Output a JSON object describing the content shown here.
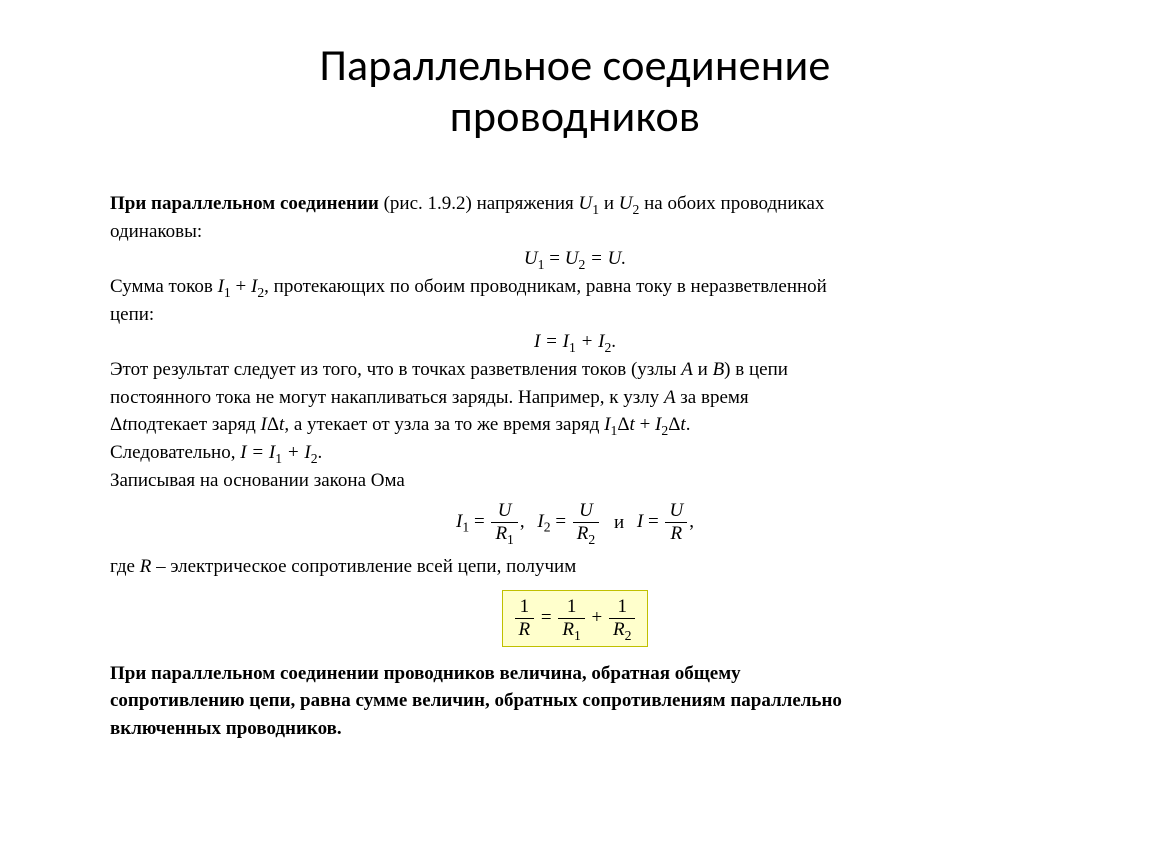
{
  "title_line1": "Параллельное соединение",
  "title_line2": "проводников",
  "intro_bold": "При параллельном соединении",
  "intro_rest1": " (рис. 1.9.2) напряжения ",
  "intro_var_U1": "U",
  "intro_rest2": " и ",
  "intro_var_U2": "U",
  "intro_rest3": " на обоих проводниках",
  "intro_line2": "одинаковы:",
  "eqU_lhs_var": "U",
  "eqU_mid_var": "U",
  "eqU_rhs": " = U.",
  "sumI_a": "Сумма токов ",
  "sumI_I1": "I",
  "sumI_plus": " + ",
  "sumI_I2": "I",
  "sumI_b": ", протекающих по обоим проводникам, равна току в неразветвленной",
  "sumI_c": "цепи:",
  "eqI_a": "I = I",
  "eqI_b": " + I",
  "eqI_c": ".",
  "para_node_a": "Этот результат следует из того, что в точках разветвления токов (узлы ",
  "para_node_A": "A",
  "para_node_and": " и ",
  "para_node_B": "B",
  "para_node_b": ") в цепи",
  "para_node_line2a": "постоянного тока не могут накапливаться заряды. Например, к узлу ",
  "para_node_A2": "A",
  "para_node_line2b": " за время",
  "charge_a": "Δ",
  "charge_t1": "t",
  "charge_b": "подтекает заряд ",
  "charge_I": "I",
  "charge_dt": "Δt",
  "charge_c": ", а утекает от узла за то же время заряд ",
  "charge_I1": "I",
  "charge_dt1": "Δt",
  "charge_plus": " + ",
  "charge_I2": "I",
  "charge_dt2": "Δt",
  "charge_dot": ".",
  "therefore_a": "Следовательно, ",
  "therefore_I": "I = I",
  "therefore_mid": " + I",
  "therefore_dot": ".",
  "ohm_line": "Записывая на основании закона Ома",
  "frac_I1": "I",
  "frac_eq": " = ",
  "frac_U": "U",
  "frac_R1": "R",
  "frac_sep1": ",    ",
  "frac_I2": "I",
  "frac_R2": "R",
  "frac_sep_and": "   и   ",
  "frac_I": "I",
  "frac_R": "R",
  "frac_trail": ",",
  "whereR_a": "где ",
  "whereR_R": "R",
  "whereR_b": " – электрическое сопротивление всей цепи, получим",
  "box_one": "1",
  "box_R": "R",
  "box_R1": "R",
  "box_R2": "R",
  "box_eq": " = ",
  "box_plus": " + ",
  "concl_bold1": "При параллельном соединении проводников величина, обратная общему",
  "concl_bold2": "сопротивлению цепи, равна сумме величин, обратных сопротивлениям параллельно",
  "concl_bold3": "включенных проводников.",
  "colors": {
    "page_bg": "#ffffff",
    "text": "#000000",
    "box_bg": "#ffffcc",
    "box_border": "#c0c000"
  },
  "fonts": {
    "title_family": "Calibri",
    "title_size_pt": 33,
    "body_family": "Times New Roman",
    "body_size_pt": 14
  }
}
